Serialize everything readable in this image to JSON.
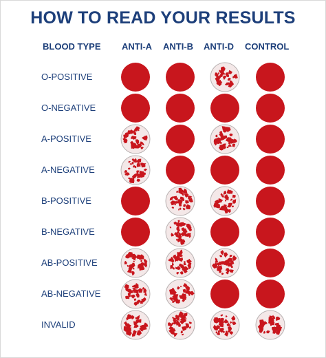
{
  "title": "HOW TO READ YOUR RESULTS",
  "columns": {
    "blood_type": "BLOOD TYPE",
    "anti_a": "ANTI-A",
    "anti_b": "ANTI-B",
    "anti_d": "ANTI-D",
    "control": "CONTROL"
  },
  "colors": {
    "heading": "#1d3f7a",
    "dot_red": "#c8161d",
    "dot_light": "#f4e8e8"
  },
  "legend_states": {
    "solid": "smooth solid red dot",
    "speckled": "light dot with red clumps"
  },
  "rows": [
    {
      "label": "O-POSITIVE",
      "anti_a": "solid",
      "anti_b": "solid",
      "anti_d": "speckled",
      "control": "solid"
    },
    {
      "label": "O-NEGATIVE",
      "anti_a": "solid",
      "anti_b": "solid",
      "anti_d": "solid",
      "control": "solid"
    },
    {
      "label": "A-POSITIVE",
      "anti_a": "speckled",
      "anti_b": "solid",
      "anti_d": "speckled",
      "control": "solid"
    },
    {
      "label": "A-NEGATIVE",
      "anti_a": "speckled",
      "anti_b": "solid",
      "anti_d": "solid",
      "control": "solid"
    },
    {
      "label": "B-POSITIVE",
      "anti_a": "solid",
      "anti_b": "speckled",
      "anti_d": "speckled",
      "control": "solid"
    },
    {
      "label": "B-NEGATIVE",
      "anti_a": "solid",
      "anti_b": "speckled",
      "anti_d": "solid",
      "control": "solid"
    },
    {
      "label": "AB-POSITIVE",
      "anti_a": "speckled",
      "anti_b": "speckled",
      "anti_d": "speckled",
      "control": "solid"
    },
    {
      "label": "AB-NEGATIVE",
      "anti_a": "speckled",
      "anti_b": "speckled",
      "anti_d": "solid",
      "control": "solid"
    },
    {
      "label": "INVALID",
      "anti_a": "speckled",
      "anti_b": "speckled",
      "anti_d": "speckled",
      "control": "speckled"
    }
  ]
}
